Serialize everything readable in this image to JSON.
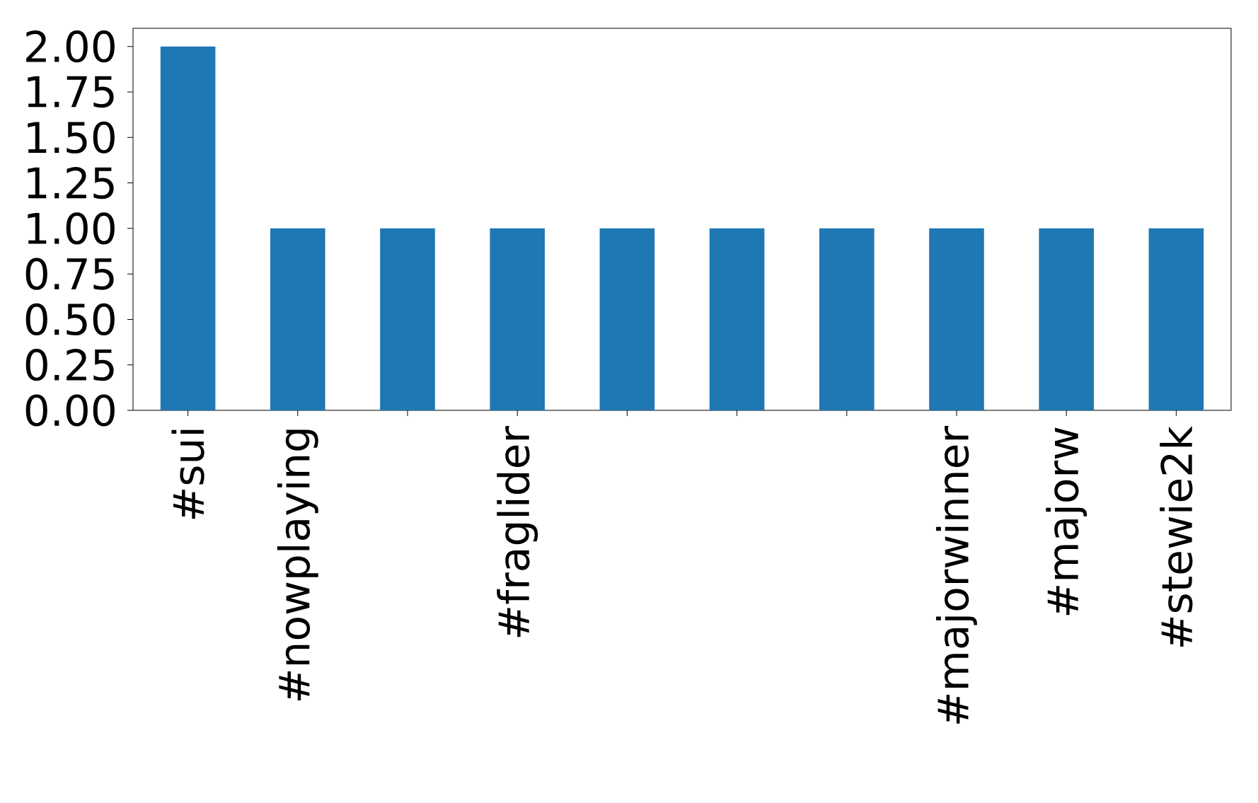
{
  "chart_data": {
    "type": "bar",
    "categories": [
      "#sui",
      "#nowplaying",
      null,
      "#fraglider",
      null,
      null,
      null,
      "#majorwinner",
      "#majorw",
      "#stewie2k"
    ],
    "values": [
      2,
      1,
      1,
      1,
      1,
      1,
      1,
      1,
      1,
      1
    ],
    "color": "#1f77b4",
    "ylim": [
      0,
      2.1
    ],
    "yticks": [
      {
        "value": 0,
        "label": "0.00"
      },
      {
        "value": 0.25,
        "label": "0.25"
      },
      {
        "value": 0.5,
        "label": "0.50"
      },
      {
        "value": 0.75,
        "label": "0.75"
      },
      {
        "value": 1,
        "label": "1.00"
      },
      {
        "value": 1.25,
        "label": "1.25"
      },
      {
        "value": 1.5,
        "label": "1.50"
      },
      {
        "value": 1.75,
        "label": "1.75"
      },
      {
        "value": 2,
        "label": "2.00"
      }
    ],
    "grid": false
  }
}
